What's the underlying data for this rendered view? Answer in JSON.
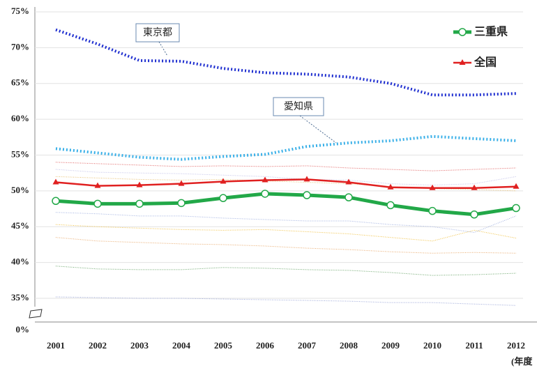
{
  "chart_data": {
    "type": "line",
    "categories": [
      "2001",
      "2002",
      "2003",
      "2004",
      "2005",
      "2006",
      "2007",
      "2008",
      "2009",
      "2010",
      "2011",
      "2012"
    ],
    "x_label": "(年度",
    "y_break_label": "0%",
    "ylim": [
      35,
      75
    ],
    "yticks": [
      {
        "value": 35,
        "label": "35%"
      },
      {
        "value": 40,
        "label": "40%"
      },
      {
        "value": 45,
        "label": "45%"
      },
      {
        "value": 50,
        "label": "50%"
      },
      {
        "value": 55,
        "label": "55%"
      },
      {
        "value": 60,
        "label": "60%"
      },
      {
        "value": 65,
        "label": "65%"
      },
      {
        "value": 70,
        "label": "70%"
      },
      {
        "value": 75,
        "label": "75%"
      }
    ],
    "grid": true,
    "annotations": [
      "東京都",
      "愛知県"
    ],
    "series": [
      {
        "color": "#9aa6d8",
        "values": [
          35.2,
          35.1,
          35.0,
          35.0,
          34.9,
          34.8,
          34.7,
          34.6,
          34.4,
          34.4,
          34.2,
          34.0
        ]
      },
      {
        "color": "#6aa56a",
        "values": [
          39.5,
          39.1,
          39.0,
          39.0,
          39.3,
          39.2,
          39.0,
          38.9,
          38.6,
          38.2,
          38.3,
          38.5
        ]
      },
      {
        "color": "#e8a86a",
        "values": [
          43.5,
          43.0,
          42.8,
          42.6,
          42.5,
          42.3,
          42.0,
          41.8,
          41.5,
          41.3,
          41.4,
          41.3
        ]
      },
      {
        "color": "#f0c040",
        "values": [
          45.3,
          45.0,
          44.8,
          44.6,
          44.5,
          44.6,
          44.3,
          44.0,
          43.5,
          43.0,
          44.5,
          43.4
        ]
      },
      {
        "color": "#a0b0e0",
        "values": [
          47.0,
          46.8,
          46.5,
          46.5,
          46.2,
          46.0,
          45.8,
          45.8,
          45.3,
          45.0,
          44.2,
          46.5
        ]
      },
      {
        "color": "#e8c070",
        "values": [
          52.0,
          51.8,
          51.6,
          51.5,
          51.6,
          51.4,
          51.2,
          51.0,
          50.6,
          50.3,
          50.2,
          50.0
        ]
      },
      {
        "color": "#e06060",
        "values": [
          54.0,
          53.8,
          53.6,
          53.4,
          53.5,
          53.4,
          53.5,
          53.2,
          53.0,
          52.8,
          53.0,
          53.2
        ]
      },
      {
        "color": "#c0c0e8",
        "values": [
          53.0,
          52.6,
          52.5,
          52.4,
          52.2,
          52.0,
          51.6,
          51.5,
          51.0,
          50.8,
          51.0,
          52.0
        ]
      },
      {
        "name": "東京都",
        "color": "#1f2fd0",
        "dotted": true,
        "values": [
          72.5,
          70.5,
          68.2,
          68.1,
          67.1,
          66.5,
          66.3,
          65.9,
          65.0,
          63.4,
          63.4,
          63.6
        ]
      },
      {
        "name": "愛知県",
        "color": "#3ab0e8",
        "dotted": true,
        "values": [
          55.9,
          55.3,
          54.7,
          54.4,
          54.8,
          55.1,
          56.2,
          56.7,
          57.0,
          57.6,
          57.3,
          57.0
        ]
      },
      {
        "name": "全国",
        "color": "#e02020",
        "marker": "triangle",
        "values": [
          51.2,
          50.7,
          50.8,
          51.0,
          51.3,
          51.5,
          51.6,
          51.2,
          50.5,
          50.4,
          50.4,
          50.6
        ]
      },
      {
        "name": "三重県",
        "color": "#22a848",
        "marker": "circle",
        "values": [
          48.6,
          48.2,
          48.2,
          48.3,
          49.0,
          49.6,
          49.4,
          49.1,
          48.0,
          47.2,
          46.7,
          47.6
        ]
      }
    ],
    "legend": [
      {
        "series": 11
      },
      {
        "series": 10
      }
    ]
  }
}
